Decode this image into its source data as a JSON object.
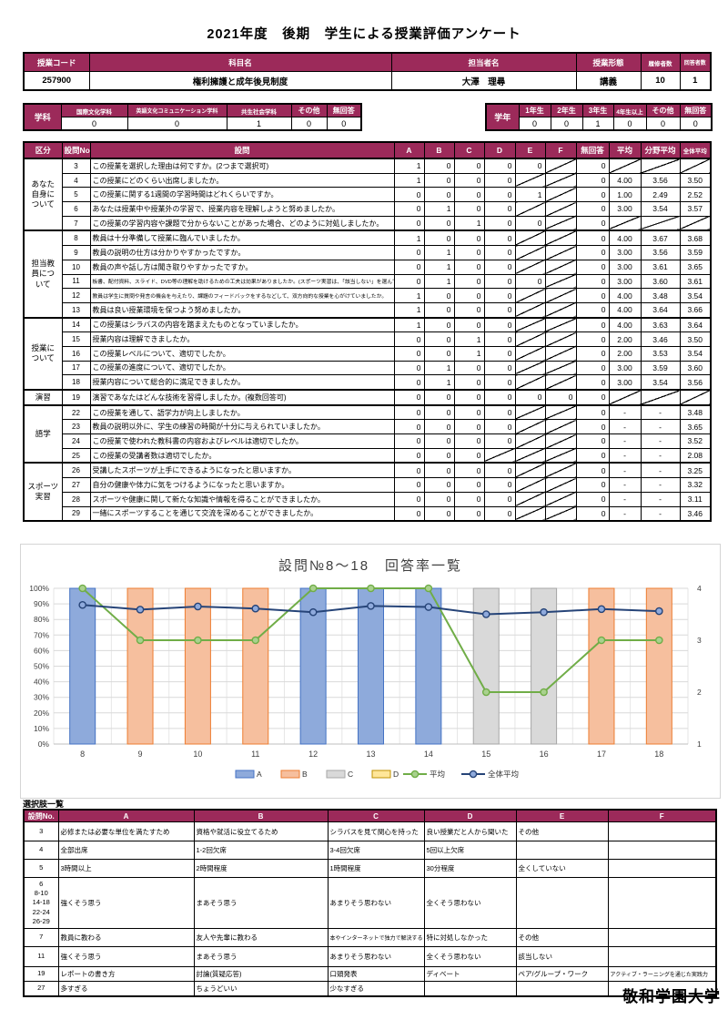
{
  "page": {
    "title": "2021年度　後期　学生による授業評価アンケート",
    "university": "敬和学園大学"
  },
  "course_table": {
    "headers": [
      "授業コード",
      "科目名",
      "担当者名",
      "授業形態",
      "履修者数",
      "回答者数"
    ],
    "values": [
      "257900",
      "権利擁護と成年後見制度",
      "大澤　理尋",
      "講義",
      "10",
      "1"
    ]
  },
  "department_table": {
    "label": "学科",
    "headers": [
      "国際文化学科",
      "英語文化コミュニケーション学科",
      "共生社会学科",
      "その他",
      "無回答"
    ],
    "values": [
      "0",
      "0",
      "1",
      "0",
      "0"
    ]
  },
  "grade_table": {
    "label": "学年",
    "headers": [
      "1年生",
      "2年生",
      "3年生",
      "4年生以上",
      "その他",
      "無回答"
    ],
    "values": [
      "0",
      "0",
      "1",
      "0",
      "0",
      "0"
    ]
  },
  "main_table": {
    "headers": [
      "区分",
      "設問No.",
      "設問",
      "A",
      "B",
      "C",
      "D",
      "E",
      "F",
      "無回答",
      "平均",
      "分野平均",
      "全体平均"
    ],
    "sections": [
      {
        "label": "あなた\n自身に\nついて",
        "rows": [
          {
            "no": "3",
            "q": "この授業を選択した理由は何ですか。(2つまで選択可)",
            "c": [
              "1",
              "0",
              "0",
              "0",
              "0",
              "diag",
              "0",
              "diag",
              "diag",
              "diag"
            ]
          },
          {
            "no": "4",
            "q": "この授業にどのくらい出席しましたか。",
            "c": [
              "1",
              "0",
              "0",
              "0",
              "diag",
              "diag",
              "0",
              "4.00",
              "3.56",
              "3.50"
            ]
          },
          {
            "no": "5",
            "q": "この授業に関する1週間の学習時間はどれくらいですか。",
            "c": [
              "0",
              "0",
              "0",
              "0",
              "1",
              "diag",
              "0",
              "1.00",
              "2.49",
              "2.52"
            ]
          },
          {
            "no": "6",
            "q": "あなたは授業中や授業外の学習で、授業内容を理解しようと努めましたか。",
            "c": [
              "0",
              "1",
              "0",
              "0",
              "diag",
              "diag",
              "0",
              "3.00",
              "3.54",
              "3.57"
            ]
          },
          {
            "no": "7",
            "q": "この授業の学習内容や課題で分からないことがあった場合、どのように対処しましたか。",
            "c": [
              "0",
              "0",
              "1",
              "0",
              "0",
              "diag",
              "0",
              "diag",
              "diag",
              "diag"
            ]
          }
        ]
      },
      {
        "label": "担当教\n員につ\nいて",
        "rows": [
          {
            "no": "8",
            "q": "教員は十分準備して授業に臨んでいましたか。",
            "c": [
              "1",
              "0",
              "0",
              "0",
              "diag",
              "diag",
              "0",
              "4.00",
              "3.67",
              "3.68"
            ]
          },
          {
            "no": "9",
            "q": "教員の説明の仕方は分かりやすかったですか。",
            "c": [
              "0",
              "1",
              "0",
              "0",
              "diag",
              "diag",
              "0",
              "3.00",
              "3.56",
              "3.59"
            ]
          },
          {
            "no": "10",
            "q": "教員の声や話し方は聞き取りやすかったですか。",
            "c": [
              "0",
              "1",
              "0",
              "0",
              "diag",
              "diag",
              "0",
              "3.00",
              "3.61",
              "3.65"
            ]
          },
          {
            "no": "11",
            "q": "板書、配付資料、スライド、DVD等の理解を助けるための工夫は効果がありましたか。(スポーツ実習は、「該当しない」を選んでください)",
            "c": [
              "0",
              "1",
              "0",
              "0",
              "0",
              "diag",
              "0",
              "3.00",
              "3.60",
              "3.61"
            ]
          },
          {
            "no": "12",
            "q": "教員は学生に質問や発言の機会を与えたり、課題のフィードバックをするなどして、双方向的な授業を心がけていましたか。",
            "c": [
              "1",
              "0",
              "0",
              "0",
              "diag",
              "diag",
              "0",
              "4.00",
              "3.48",
              "3.54"
            ]
          },
          {
            "no": "13",
            "q": "教員は良い授業環境を保つよう努めましたか。",
            "c": [
              "1",
              "0",
              "0",
              "0",
              "diag",
              "diag",
              "0",
              "4.00",
              "3.64",
              "3.66"
            ]
          }
        ]
      },
      {
        "label": "授業に\nついて",
        "rows": [
          {
            "no": "14",
            "q": "この授業はシラバスの内容を踏まえたものとなっていましたか。",
            "c": [
              "1",
              "0",
              "0",
              "0",
              "diag",
              "diag",
              "0",
              "4.00",
              "3.63",
              "3.64"
            ]
          },
          {
            "no": "15",
            "q": "授業内容は理解できましたか。",
            "c": [
              "0",
              "0",
              "1",
              "0",
              "diag",
              "diag",
              "0",
              "2.00",
              "3.46",
              "3.50"
            ]
          },
          {
            "no": "16",
            "q": "この授業レベルについて、適切でしたか。",
            "c": [
              "0",
              "0",
              "1",
              "0",
              "diag",
              "diag",
              "0",
              "2.00",
              "3.53",
              "3.54"
            ]
          },
          {
            "no": "17",
            "q": "この授業の進度について、適切でしたか。",
            "c": [
              "0",
              "1",
              "0",
              "0",
              "diag",
              "diag",
              "0",
              "3.00",
              "3.59",
              "3.60"
            ]
          },
          {
            "no": "18",
            "q": "授業内容について総合的に満足できましたか。",
            "c": [
              "0",
              "1",
              "0",
              "0",
              "diag",
              "diag",
              "0",
              "3.00",
              "3.54",
              "3.56"
            ]
          }
        ]
      },
      {
        "label": "演習",
        "rows": [
          {
            "no": "19",
            "q": "演習であなたはどんな技術を習得しましたか。(複数回答可)",
            "c": [
              "0",
              "0",
              "0",
              "0",
              "0",
              "0",
              "0",
              "diag",
              "diag",
              "diag"
            ]
          }
        ]
      },
      {
        "label": "語学",
        "rows": [
          {
            "no": "22",
            "q": "この授業を通して、語学力が向上しましたか。",
            "c": [
              "0",
              "0",
              "0",
              "0",
              "diag",
              "diag",
              "0",
              "-",
              "-",
              "3.48"
            ]
          },
          {
            "no": "23",
            "q": "教員の説明以外に、学生の練習の時間が十分に与えられていましたか。",
            "c": [
              "0",
              "0",
              "0",
              "0",
              "diag",
              "diag",
              "0",
              "-",
              "-",
              "3.65"
            ]
          },
          {
            "no": "24",
            "q": "この授業で使われた教科書の内容およびレベルは適切でしたか。",
            "c": [
              "0",
              "0",
              "0",
              "0",
              "diag",
              "diag",
              "0",
              "-",
              "-",
              "3.52"
            ]
          },
          {
            "no": "25",
            "q": "この授業の受講者数は適切でしたか。",
            "c": [
              "0",
              "0",
              "0",
              "diag",
              "diag",
              "diag",
              "0",
              "-",
              "-",
              "2.08"
            ]
          }
        ]
      },
      {
        "label": "スポーツ\n実習",
        "rows": [
          {
            "no": "26",
            "q": "受講したスポーツが上手にできるようになったと思いますか。",
            "c": [
              "0",
              "0",
              "0",
              "0",
              "diag",
              "diag",
              "0",
              "-",
              "-",
              "3.25"
            ]
          },
          {
            "no": "27",
            "q": "自分の健康や体力に気をつけるようになったと思いますか。",
            "c": [
              "0",
              "0",
              "0",
              "0",
              "diag",
              "diag",
              "0",
              "-",
              "-",
              "3.32"
            ]
          },
          {
            "no": "28",
            "q": "スポーツや健康に関して新たな知識や情報を得ることができましたか。",
            "c": [
              "0",
              "0",
              "0",
              "0",
              "diag",
              "diag",
              "0",
              "-",
              "-",
              "3.11"
            ]
          },
          {
            "no": "29",
            "q": "一緒にスポーツすることを通じて交流を深めることができましたか。",
            "c": [
              "0",
              "0",
              "0",
              "0",
              "diag",
              "diag",
              "0",
              "-",
              "-",
              "3.46"
            ]
          }
        ]
      }
    ]
  },
  "chart_data": {
    "type": "bar",
    "title": "設問№8～18　回答率一覧",
    "categories": [
      "8",
      "9",
      "10",
      "11",
      "12",
      "13",
      "14",
      "15",
      "16",
      "17",
      "18"
    ],
    "bars": {
      "values_percent": [
        100,
        100,
        100,
        100,
        100,
        100,
        100,
        100,
        100,
        100,
        100
      ],
      "option": [
        "A",
        "B",
        "B",
        "B",
        "A",
        "A",
        "A",
        "C",
        "C",
        "B",
        "B"
      ]
    },
    "bar_colors": {
      "A": {
        "fill": "#8EAADB",
        "stroke": "#4472C4"
      },
      "B": {
        "fill": "#F6BF9E",
        "stroke": "#ED7D31"
      },
      "C": {
        "fill": "#D9D9D9",
        "stroke": "#A6A6A6"
      },
      "D": {
        "fill": "#FFE699",
        "stroke": "#BF9000"
      }
    },
    "series": [
      {
        "name": "平均",
        "axis": "right",
        "color": "#70AD47",
        "marker": "#A9D18E",
        "values": [
          4.0,
          3.0,
          3.0,
          3.0,
          4.0,
          4.0,
          4.0,
          2.0,
          2.0,
          3.0,
          3.0
        ]
      },
      {
        "name": "全体平均",
        "axis": "right",
        "color": "#264478",
        "marker": "#8FAADC",
        "values": [
          3.68,
          3.59,
          3.65,
          3.61,
          3.54,
          3.66,
          3.64,
          3.5,
          3.54,
          3.6,
          3.56
        ]
      }
    ],
    "left_axis": {
      "min": 0,
      "max": 100,
      "step": 10,
      "unit": "%",
      "tick_labels": [
        "100%",
        "90%",
        "80%",
        "70%",
        "60%",
        "50%",
        "40%",
        "30%",
        "20%",
        "10%",
        "0%"
      ]
    },
    "right_axis": {
      "min": 1,
      "max": 4,
      "ticks": [
        4,
        3,
        2,
        1
      ]
    },
    "legend": [
      "A",
      "B",
      "C",
      "D",
      "平均",
      "全体平均"
    ],
    "grid": true,
    "legend_position": "bottom"
  },
  "choices_table": {
    "title": "選択肢一覧",
    "headers": [
      "設問No.",
      "A",
      "B",
      "C",
      "D",
      "E",
      "F"
    ],
    "rows": [
      {
        "no": "3",
        "cells": [
          "必修または必要な単位を満たすため",
          "資格や就活に役立てるため",
          "シラバスを見て関心を持った",
          "良い授業だと人から聞いた",
          "その他",
          ""
        ]
      },
      {
        "no": "4",
        "cells": [
          "全部出席",
          "1-2回欠席",
          "3-4回欠席",
          "5回以上欠席",
          "",
          ""
        ]
      },
      {
        "no": "5",
        "cells": [
          "3時間以上",
          "2時間程度",
          "1時間程度",
          "30分程度",
          "全くしていない",
          ""
        ]
      },
      {
        "no": "6\n8-10\n14-18\n22-24\n26-29",
        "cells": [
          "強くそう思う",
          "まあそう思う",
          "あまりそう思わない",
          "全くそう思わない",
          "",
          ""
        ]
      },
      {
        "no": "7",
        "cells": [
          "教員に教わる",
          "友人や先輩に教わる",
          "本やインターネットで独力で解決する",
          "特に対処しなかった",
          "その他",
          ""
        ]
      },
      {
        "no": "11",
        "cells": [
          "強くそう思う",
          "まあそう思う",
          "あまりそう思わない",
          "全くそう思わない",
          "該当しない",
          ""
        ]
      },
      {
        "no": "19",
        "cells": [
          "レポートの書き方",
          "討論(質疑応答)",
          "口頭発表",
          "ディベート",
          "ペア/グループ・ワーク",
          "アクティブ・ラーニングを通じた実践力"
        ]
      },
      {
        "no": "27",
        "cells": [
          "多すぎる",
          "ちょうどいい",
          "少なすぎる",
          "",
          "",
          ""
        ]
      }
    ]
  }
}
